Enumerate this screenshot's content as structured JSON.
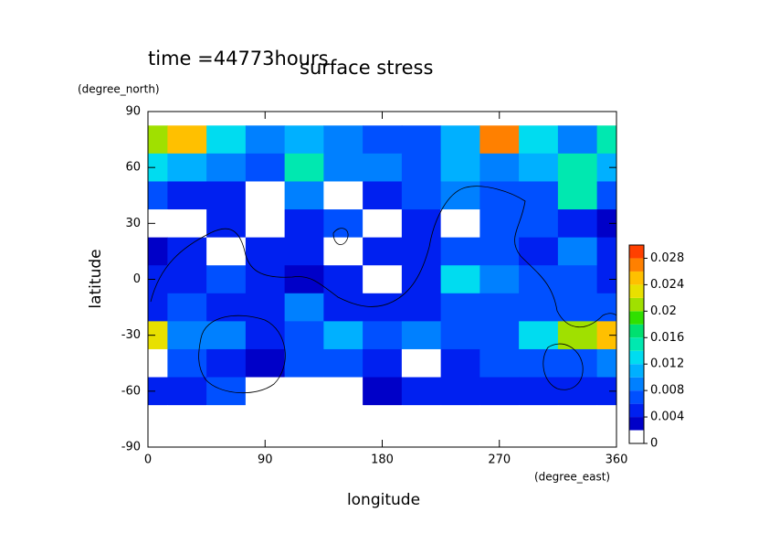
{
  "chart_data": {
    "type": "contour",
    "title": "surface stress",
    "subtitle": "time =44773hours",
    "x_label": "longitude",
    "y_label": "latitude",
    "x_unit": "(degree_east)",
    "y_unit": "(degree_north)",
    "xlim": [
      0,
      360
    ],
    "ylim": [
      -90,
      90
    ],
    "xticks": [
      0,
      90,
      180,
      270,
      360
    ],
    "yticks": [
      -90,
      -60,
      -30,
      0,
      30,
      60,
      90
    ],
    "x": [
      0,
      30,
      60,
      90,
      120,
      150,
      180,
      210,
      240,
      270,
      300,
      330,
      360
    ],
    "y": [
      90,
      75,
      60,
      45,
      30,
      15,
      0,
      -15,
      -30,
      -45,
      -60,
      -75,
      -90
    ],
    "z": [
      [
        0,
        0,
        0,
        0,
        0,
        0,
        0,
        0,
        0,
        0,
        0,
        0,
        0
      ],
      [
        0.02,
        0.024,
        0.012,
        0.008,
        0.01,
        0.008,
        0.006,
        0.006,
        0.01,
        0.026,
        0.012,
        0.008,
        0.014
      ],
      [
        0.012,
        0.01,
        0.008,
        0.006,
        0.014,
        0.008,
        0.008,
        0.006,
        0.01,
        0.008,
        0.01,
        0.014,
        0.01
      ],
      [
        0.006,
        0.004,
        0.004,
        0,
        0.008,
        0,
        0.004,
        0.006,
        0.008,
        0.006,
        0.006,
        0.014,
        0.006
      ],
      [
        0,
        0,
        0.004,
        0,
        0.004,
        0.006,
        0,
        0.004,
        0,
        0.006,
        0.006,
        0.004,
        0.002
      ],
      [
        0.002,
        0.004,
        0,
        0.004,
        0.004,
        0,
        0.004,
        0.004,
        0.006,
        0.006,
        0.004,
        0.008,
        0.004
      ],
      [
        0.004,
        0.004,
        0.006,
        0.004,
        0.002,
        0.004,
        0,
        0.004,
        0.012,
        0.008,
        0.006,
        0.006,
        0.004
      ],
      [
        0.004,
        0.006,
        0.004,
        0.004,
        0.008,
        0.004,
        0.004,
        0.004,
        0.006,
        0.006,
        0.006,
        0.006,
        0.006
      ],
      [
        0.022,
        0.008,
        0.008,
        0.004,
        0.006,
        0.01,
        0.006,
        0.008,
        0.006,
        0.006,
        0.012,
        0.02,
        0.024
      ],
      [
        0,
        0.006,
        0.004,
        0.002,
        0.006,
        0.006,
        0.004,
        0,
        0.004,
        0.006,
        0.006,
        0.006,
        0.008
      ],
      [
        0.004,
        0.004,
        0.006,
        0,
        0,
        0,
        0.002,
        0.004,
        0.004,
        0.004,
        0.004,
        0.004,
        0.004
      ],
      [
        0,
        0,
        0,
        0,
        0,
        0,
        0,
        0,
        0,
        0,
        0,
        0,
        0
      ],
      [
        0,
        0,
        0,
        0,
        0,
        0,
        0,
        0,
        0,
        0,
        0,
        0,
        0
      ]
    ],
    "colorbar": {
      "lim": [
        0,
        0.03
      ],
      "levels": [
        0,
        0.002,
        0.004,
        0.006,
        0.008,
        0.01,
        0.012,
        0.014,
        0.016,
        0.018,
        0.02,
        0.022,
        0.024,
        0.026,
        0.028,
        0.03
      ],
      "colors": [
        "#ffffff",
        "#0000c8",
        "#0020f0",
        "#0050ff",
        "#0080ff",
        "#00b0ff",
        "#00dcf0",
        "#00e8b0",
        "#00e070",
        "#30e000",
        "#a0e000",
        "#e8e000",
        "#ffc000",
        "#ff8000",
        "#ff4000"
      ],
      "ticks": [
        0,
        0.004,
        0.008,
        0.012,
        0.016,
        0.02,
        0.024,
        0.028
      ]
    }
  }
}
